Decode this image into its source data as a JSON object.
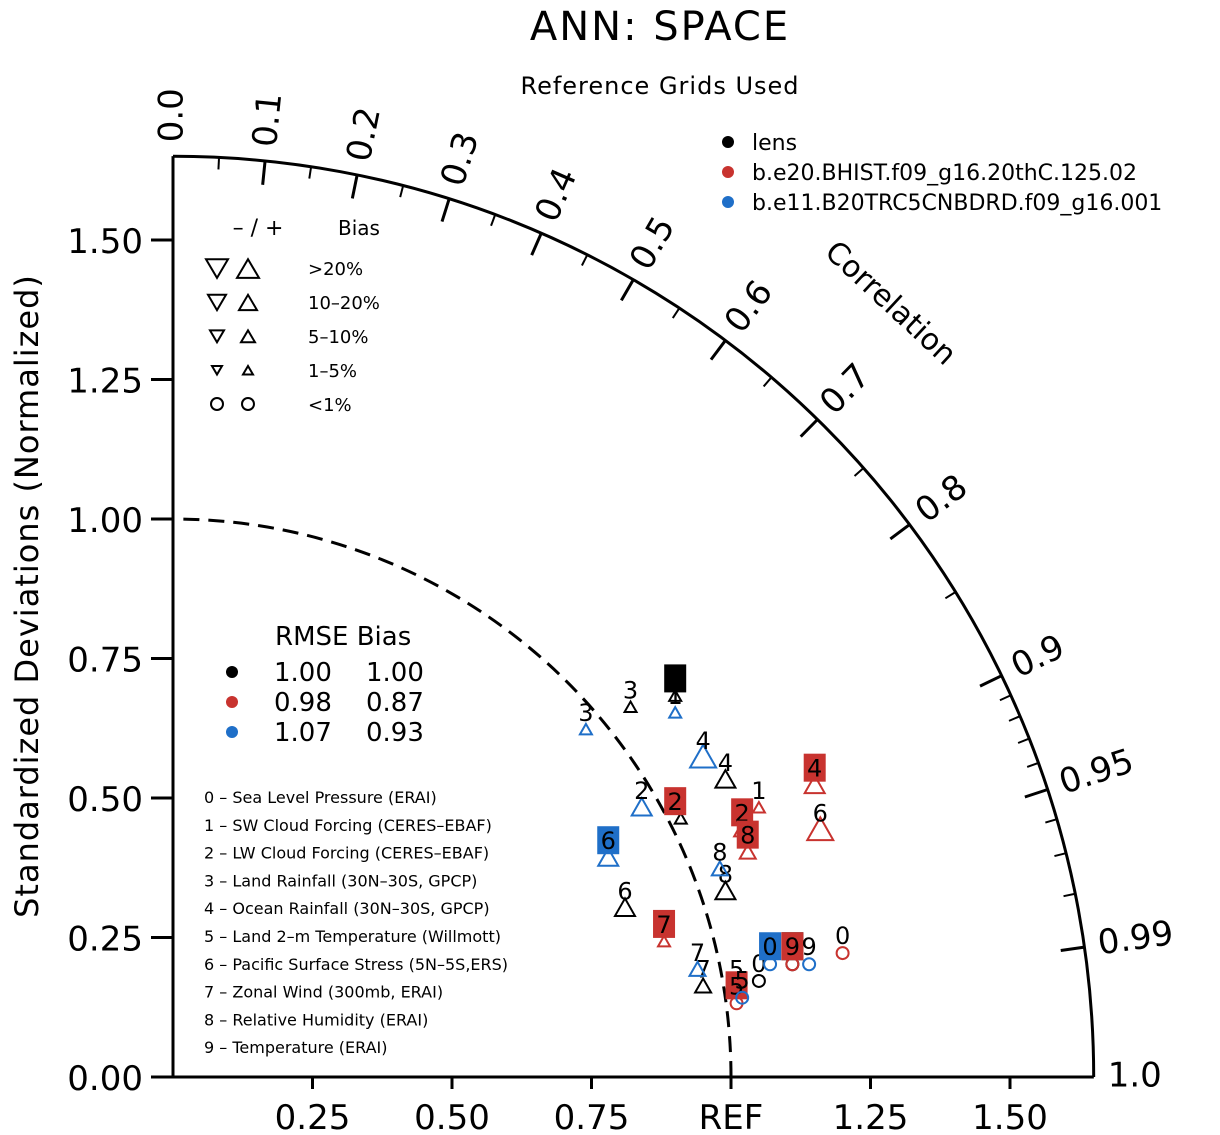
{
  "chart_data": {
    "type": "scatter",
    "subtype": "taylor-diagram",
    "title": "ANN: SPACE",
    "subtitle": "Reference Grids Used",
    "ylabel": "Standardized Deviations (Normalized)",
    "arc_label": "Correlation",
    "ref_label": "REF",
    "xlim": [
      0,
      1.65
    ],
    "ylim": [
      0,
      1.65
    ],
    "y_ticks": [
      "0.00",
      "0.25",
      "0.50",
      "0.75",
      "1.00",
      "1.25",
      "1.50"
    ],
    "x_ticks": [
      "0.25",
      "0.50",
      "0.75",
      "REF",
      "1.25",
      "1.50"
    ],
    "correlation_labels": [
      "0.0",
      "0.1",
      "0.2",
      "0.3",
      "0.4",
      "0.5",
      "0.6",
      "0.7",
      "0.8",
      "0.9",
      "0.95",
      "0.99",
      "1.0"
    ],
    "correlation_values": [
      0.0,
      0.1,
      0.2,
      0.3,
      0.4,
      0.5,
      0.6,
      0.7,
      0.8,
      0.9,
      0.95,
      0.99,
      1.0
    ],
    "reference_arc": 1.0,
    "colors": {
      "lens": "#000000",
      "bhist": "#c8332f",
      "b20trc": "#1f6fc8"
    },
    "legend": {
      "placement": "top-right",
      "entries": [
        {
          "name": "lens",
          "color": "#000000"
        },
        {
          "name": "b.e20.BHIST.f09_g16.20thC.125.02",
          "color": "#c8332f"
        },
        {
          "name": "b.e11.B20TRC5CNBDRD.f09_g16.001",
          "color": "#1f6fc8"
        }
      ]
    },
    "bias_legend": {
      "header_sign": "– / +",
      "header_bias": "Bias",
      "rows": [
        ">20%",
        "10–20%",
        "5–10%",
        "1–5%",
        "<1%"
      ]
    },
    "rmse_table": {
      "header": "RMSE Bias",
      "rows": [
        {
          "color": "#000000",
          "rmse": "1.00",
          "bias": "1.00"
        },
        {
          "color": "#c8332f",
          "rmse": "0.98",
          "bias": "0.87"
        },
        {
          "color": "#1f6fc8",
          "rmse": "1.07",
          "bias": "0.93"
        }
      ]
    },
    "variables": [
      "0 – Sea Level Pressure (ERAI)",
      "1 – SW Cloud Forcing (CERES–EBAF)",
      "2 – LW Cloud Forcing (CERES–EBAF)",
      "3 – Land Rainfall (30N–30S, GPCP)",
      "4 – Ocean Rainfall (30N–30S, GPCP)",
      "5 – Land 2–m Temperature (Willmott)",
      "6 – Pacific Surface Stress (5N–5S,ERS)",
      "7 – Zonal Wind (300mb, ERAI)",
      "8 – Relative Humidity (ERAI)",
      "9 – Temperature (ERAI)"
    ],
    "series": [
      {
        "name": "lens",
        "color": "#000000",
        "points": [
          {
            "label": "0",
            "x": 1.05,
            "y": 0.19,
            "marker": "circle",
            "boxed": false
          },
          {
            "label": "1",
            "x": 0.9,
            "y": 0.7,
            "marker": "tri-up-xs",
            "boxed": true
          },
          {
            "label": "2",
            "x": 0.91,
            "y": 0.48,
            "marker": "tri-up-xs",
            "boxed": false
          },
          {
            "label": "3",
            "x": 0.82,
            "y": 0.68,
            "marker": "tri-up-xs",
            "boxed": false
          },
          {
            "label": "4",
            "x": 0.99,
            "y": 0.55,
            "marker": "tri-up-md",
            "boxed": false
          },
          {
            "label": "5",
            "x": 1.01,
            "y": 0.18,
            "marker": "circle",
            "boxed": false
          },
          {
            "label": "6",
            "x": 0.81,
            "y": 0.32,
            "marker": "tri-up-md",
            "boxed": false
          },
          {
            "label": "7",
            "x": 0.95,
            "y": 0.18,
            "marker": "tri-up-sm",
            "boxed": false
          },
          {
            "label": "8",
            "x": 0.99,
            "y": 0.35,
            "marker": "tri-up-md",
            "boxed": false
          },
          {
            "label": "9",
            "x": 1.11,
            "y": 0.22,
            "marker": "circle",
            "boxed": true
          }
        ]
      },
      {
        "name": "b.e20.BHIST.f09_g16.20thC.125.02",
        "color": "#c8332f",
        "points": [
          {
            "label": "0",
            "x": 1.2,
            "y": 0.24,
            "marker": "circle",
            "boxed": false
          },
          {
            "label": "1",
            "x": 1.05,
            "y": 0.5,
            "marker": "tri-up-xs",
            "boxed": false
          },
          {
            "label": "2",
            "x": 1.02,
            "y": 0.46,
            "marker": "tri-up-sm",
            "boxed": true
          },
          {
            "label": "2",
            "x": 0.9,
            "y": 0.48,
            "marker": "none",
            "boxed": true
          },
          {
            "label": "4",
            "x": 1.15,
            "y": 0.54,
            "marker": "tri-up-md",
            "boxed": true
          },
          {
            "label": "5",
            "x": 1.01,
            "y": 0.15,
            "marker": "circle",
            "boxed": true
          },
          {
            "label": "6",
            "x": 1.16,
            "y": 0.46,
            "marker": "tri-up-lg",
            "boxed": false
          },
          {
            "label": "7",
            "x": 0.88,
            "y": 0.26,
            "marker": "tri-up-xs",
            "boxed": true
          },
          {
            "label": "8",
            "x": 1.03,
            "y": 0.42,
            "marker": "tri-up-sm",
            "boxed": true
          },
          {
            "label": "9",
            "x": 1.11,
            "y": 0.22,
            "marker": "circle",
            "boxed": true
          }
        ]
      },
      {
        "name": "b.e11.B20TRC5CNBDRD.f09_g16.001",
        "color": "#1f6fc8",
        "points": [
          {
            "label": "0",
            "x": 1.07,
            "y": 0.22,
            "marker": "circle",
            "boxed": true
          },
          {
            "label": "1",
            "x": 0.9,
            "y": 0.67,
            "marker": "tri-up-xs",
            "boxed": false
          },
          {
            "label": "2",
            "x": 0.84,
            "y": 0.5,
            "marker": "tri-up-md",
            "boxed": false
          },
          {
            "label": "3",
            "x": 0.74,
            "y": 0.64,
            "marker": "tri-up-xs",
            "boxed": false
          },
          {
            "label": "4",
            "x": 0.95,
            "y": 0.59,
            "marker": "tri-up-lg",
            "boxed": false
          },
          {
            "label": "5",
            "x": 1.02,
            "y": 0.16,
            "marker": "circle",
            "boxed": false
          },
          {
            "label": "6",
            "x": 0.78,
            "y": 0.41,
            "marker": "tri-up-md",
            "boxed": true
          },
          {
            "label": "7",
            "x": 0.94,
            "y": 0.21,
            "marker": "tri-up-sm",
            "boxed": false
          },
          {
            "label": "8",
            "x": 0.98,
            "y": 0.39,
            "marker": "tri-up-sm",
            "boxed": false
          },
          {
            "label": "9",
            "x": 1.14,
            "y": 0.22,
            "marker": "circle",
            "boxed": false
          }
        ]
      }
    ]
  }
}
